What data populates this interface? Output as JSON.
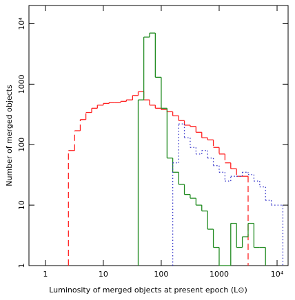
{
  "chart_data": {
    "type": "histogram",
    "xlabel": "Luminosity of merged objects at present epoch (L⊙)",
    "ylabel": "Number of merged objects",
    "xscale": "log",
    "yscale": "log",
    "xlim": [
      0.52,
      15500
    ],
    "ylim": [
      1,
      20000
    ],
    "xticks": [
      1,
      10,
      100,
      1000,
      {
        "value": 10000,
        "label": "10⁴"
      }
    ],
    "yticks": [
      1,
      10,
      100,
      1000,
      {
        "value": 10000,
        "label": "10⁴"
      }
    ],
    "series": [
      {
        "color": "#ff2020",
        "style": "dashed",
        "bins": [
          2.5,
          3.2,
          4,
          5,
          6.3,
          7.9,
          10,
          12.6,
          15.8,
          20,
          25,
          32,
          40,
          50,
          63,
          79,
          100,
          126,
          158,
          200,
          251,
          316,
          398,
          501,
          631,
          794,
          1000,
          1259,
          1585,
          1995,
          2512,
          3162
        ],
        "values": [
          80,
          170,
          260,
          340,
          400,
          450,
          480,
          500,
          500,
          520,
          550,
          650,
          750,
          550,
          450,
          400,
          380,
          350,
          300,
          250,
          210,
          200,
          160,
          130,
          120,
          90,
          70,
          50,
          40,
          30,
          30
        ]
      },
      {
        "color": "#1f8a1f",
        "style": "solid",
        "bins": [
          40,
          50,
          63,
          79,
          100,
          126,
          158,
          200,
          251,
          316,
          398,
          501,
          631,
          794,
          1000,
          1259,
          1585,
          1995,
          2512,
          3162,
          3981,
          5012,
          6310
        ],
        "values": [
          550,
          6000,
          7000,
          1300,
          400,
          60,
          35,
          22,
          15,
          13,
          10,
          8,
          4,
          2,
          1,
          1,
          5,
          2,
          3,
          5,
          2,
          2
        ]
      },
      {
        "color": "#3030c8",
        "style": "dotted",
        "bins": [
          158,
          200,
          251,
          316,
          398,
          501,
          631,
          794,
          1000,
          1259,
          1585,
          1995,
          2512,
          3162,
          3981,
          5012,
          6310,
          7943,
          12589
        ],
        "values": [
          50,
          220,
          130,
          90,
          70,
          80,
          60,
          45,
          35,
          25,
          30,
          30,
          35,
          32,
          25,
          20,
          12,
          10
        ]
      }
    ]
  }
}
